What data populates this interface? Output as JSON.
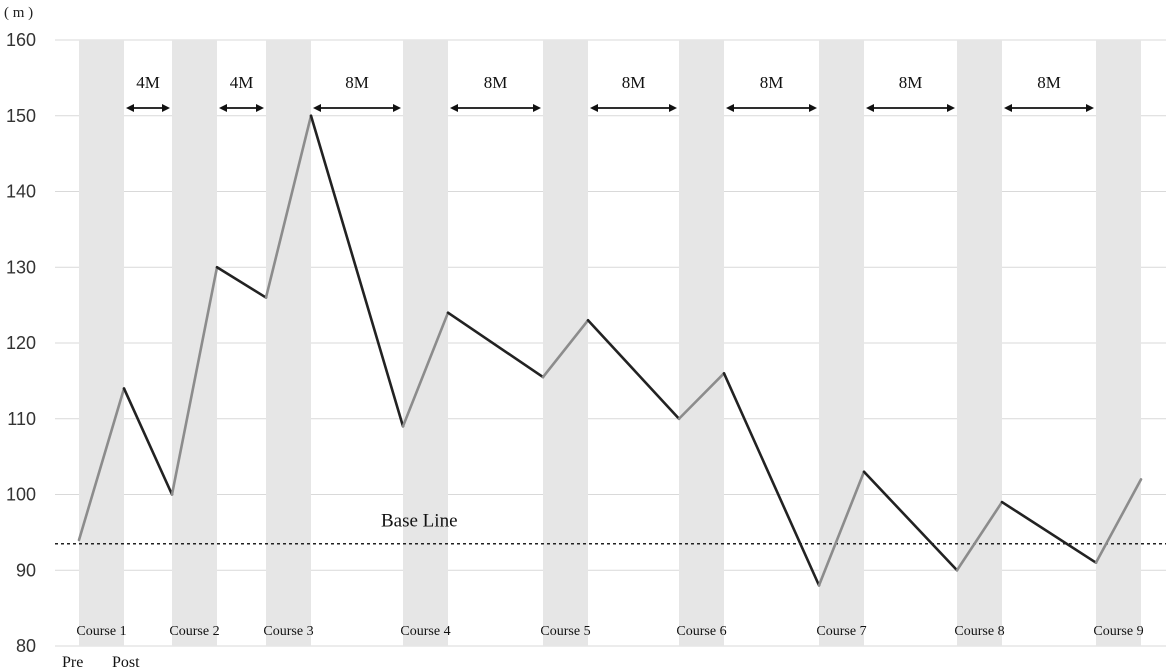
{
  "chart_data": {
    "type": "line",
    "y_unit": "( m )",
    "ylim": [
      80,
      160
    ],
    "y_ticks": [
      80,
      90,
      100,
      110,
      120,
      130,
      140,
      150,
      160
    ],
    "grid": true,
    "courses": [
      {
        "label": "Course 1",
        "pre": 94,
        "post": 114
      },
      {
        "label": "Course 2",
        "pre": 100,
        "post": 130
      },
      {
        "label": "Course 3",
        "pre": 126,
        "post": 150
      },
      {
        "label": "Course 4",
        "pre": 109,
        "post": 124
      },
      {
        "label": "Course 5",
        "pre": 115.5,
        "post": 123
      },
      {
        "label": "Course 6",
        "pre": 110,
        "post": 116
      },
      {
        "label": "Course 7",
        "pre": 88,
        "post": 103
      },
      {
        "label": "Course 8",
        "pre": 90,
        "post": 99
      },
      {
        "label": "Course 9",
        "pre": 91,
        "post": 102
      }
    ],
    "intervals": [
      "4M",
      "4M",
      "8M",
      "8M",
      "8M",
      "8M",
      "8M",
      "8M"
    ],
    "baseline": {
      "label": "Base Line",
      "value": 93.5
    },
    "pre_label": "Pre",
    "post_label": "Post",
    "colors": {
      "within_course": "#8c8c8c",
      "between_course": "#222222",
      "band": "#e6e6e6",
      "grid": "#d9d9d9"
    }
  }
}
